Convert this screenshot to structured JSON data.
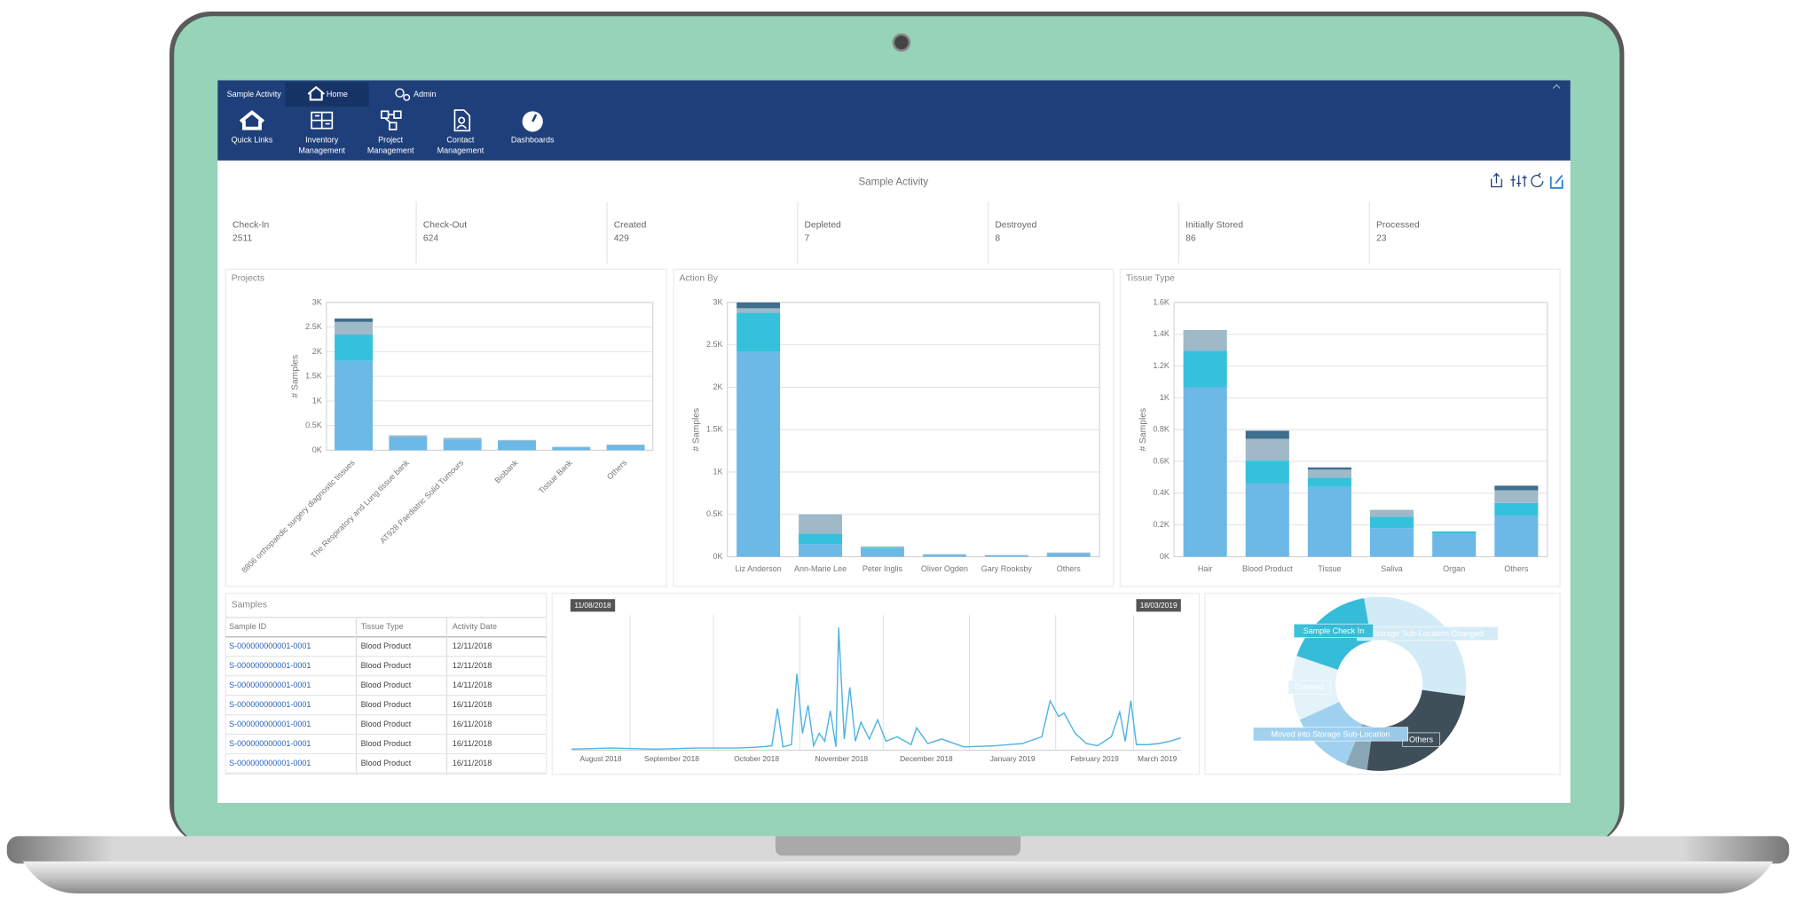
{
  "app": {
    "tabs": [
      "Sample Activity",
      "Home",
      "Admin"
    ],
    "ribbon": [
      [
        "Quick Links"
      ],
      [
        "Inventory",
        "Management"
      ],
      [
        "Project",
        "Management"
      ],
      [
        "Contact",
        "Management"
      ],
      [
        "Dashboards"
      ]
    ]
  },
  "dashboard": {
    "title": "Sample Activity",
    "kpis": [
      {
        "label": "Check-In",
        "value": 2511
      },
      {
        "label": "Check-Out",
        "value": 624
      },
      {
        "label": "Created",
        "value": 429
      },
      {
        "label": "Depleted",
        "value": 7
      },
      {
        "label": "Destroyed",
        "value": 8
      },
      {
        "label": "Initially Stored",
        "value": 86
      },
      {
        "label": "Processed",
        "value": 23
      }
    ]
  },
  "charts": [
    {
      "type": "bar",
      "title": "Projects",
      "y_label": "# Samples",
      "categories": [
        "8806 orthopaedic surgery diagnostic tissues",
        "The Respiratory and Lung tissue bank",
        "AT928 Paediatric Solid Tumours",
        "Biobank",
        "Tissue Bank",
        "Others"
      ],
      "series": [
        {
          "color": "#6cb8e6",
          "values": [
            1814,
            270,
            220,
            190,
            60,
            100
          ]
        },
        {
          "color": "#35c1dc",
          "values": [
            535,
            0,
            0,
            0,
            0,
            0
          ]
        },
        {
          "color": "#9fb9c9",
          "values": [
            256,
            32,
            30,
            19,
            10,
            16
          ]
        },
        {
          "color": "#3f6f8e",
          "values": [
            70,
            0,
            0,
            0,
            0,
            0
          ]
        }
      ],
      "ylim": [
        0,
        3000
      ],
      "yticks": [
        {
          "value": 0,
          "label": "0K"
        },
        {
          "value": 500,
          "label": "0.5K"
        },
        {
          "value": 1000,
          "label": "1K"
        },
        {
          "value": 1500,
          "label": "1.5K"
        },
        {
          "value": 2000,
          "label": "2K"
        },
        {
          "value": 2500,
          "label": "2.5K"
        },
        {
          "value": 3000,
          "label": "3K"
        }
      ],
      "grid": true
    },
    {
      "type": "bar",
      "title": "Action By",
      "y_label": "# Samples",
      "categories": [
        "Liz Anderson",
        "Ann-Marie Lee",
        "Peter Inglis",
        "Oliver Ogden",
        "Gary Rooksby",
        "Others"
      ],
      "series": [
        {
          "color": "#6cb8e6",
          "values": [
            2419,
            149,
            90,
            25,
            15,
            40
          ]
        },
        {
          "color": "#35c1dc",
          "values": [
            459,
            122,
            10,
            0,
            0,
            0
          ]
        },
        {
          "color": "#9fb9c9",
          "values": [
            54,
            229,
            22,
            5,
            5,
            10
          ]
        },
        {
          "color": "#3f6f8e",
          "values": [
            68,
            0,
            0,
            0,
            0,
            0
          ]
        }
      ],
      "ylim": [
        0,
        3000
      ],
      "yticks": [
        {
          "value": 0,
          "label": "0K"
        },
        {
          "value": 500,
          "label": "0.5K"
        },
        {
          "value": 1000,
          "label": "1K"
        },
        {
          "value": 1500,
          "label": "1.5K"
        },
        {
          "value": 2000,
          "label": "2K"
        },
        {
          "value": 2500,
          "label": "2.5K"
        },
        {
          "value": 3000,
          "label": "3K"
        }
      ],
      "grid": true
    },
    {
      "type": "bar",
      "title": "Tissue Type",
      "y_label": "# Samples",
      "categories": [
        "Hair",
        "Blood Product",
        "Tissue",
        "Saliva",
        "Organ",
        "Others"
      ],
      "series": [
        {
          "color": "#6cb8e6",
          "values": [
            1066,
            461,
            440,
            180,
            144,
            259
          ]
        },
        {
          "color": "#35c1dc",
          "values": [
            231,
            144,
            57,
            72,
            15,
            80
          ]
        },
        {
          "color": "#9fb9c9",
          "values": [
            130,
            137,
            51,
            43,
            0,
            79
          ]
        },
        {
          "color": "#3f6f8e",
          "values": [
            0,
            51,
            14,
            0,
            0,
            29
          ]
        }
      ],
      "ylim": [
        0,
        1600
      ],
      "yticks": [
        {
          "value": 0,
          "label": "0K"
        },
        {
          "value": 200,
          "label": "0.2K"
        },
        {
          "value": 400,
          "label": "0.4K"
        },
        {
          "value": 600,
          "label": "0.6K"
        },
        {
          "value": 800,
          "label": "0.8K"
        },
        {
          "value": 1000,
          "label": "1K"
        },
        {
          "value": 1200,
          "label": "1.2K"
        },
        {
          "value": 1400,
          "label": "1.4K"
        },
        {
          "value": 1600,
          "label": "1.6K"
        }
      ],
      "grid": true
    },
    {
      "type": "line",
      "color": "#4fb3e3",
      "x": [
        "11/08/2018",
        "25/08/2018",
        "10/09/2018",
        "25/09/2018",
        "10/10/2018",
        "18/10/2018",
        "22/10/2018",
        "24/10/2018",
        "26/10/2018",
        "29/10/2018",
        "31/10/2018",
        "02/11/2018",
        "04/11/2018",
        "06/11/2018",
        "08/11/2018",
        "10/11/2018",
        "12/11/2018",
        "14/11/2018",
        "15/11/2018",
        "17/11/2018",
        "19/11/2018",
        "21/11/2018",
        "23/11/2018",
        "26/11/2018",
        "29/11/2018",
        "02/12/2018",
        "06/12/2018",
        "11/12/2018",
        "13/12/2018",
        "17/12/2018",
        "22/12/2018",
        "30/12/2018",
        "10/01/2019",
        "20/01/2019",
        "27/01/2019",
        "30/01/2019",
        "02/02/2019",
        "04/02/2019",
        "08/02/2019",
        "12/02/2019",
        "16/02/2019",
        "21/02/2019",
        "24/02/2019",
        "26/02/2019",
        "28/02/2019",
        "02/03/2019",
        "06/03/2019",
        "10/03/2019",
        "14/03/2019",
        "18/03/2019"
      ],
      "values": [
        1,
        2,
        1,
        2,
        2,
        3,
        4,
        37,
        3,
        5,
        68,
        15,
        40,
        4,
        15,
        8,
        35,
        3,
        109,
        10,
        56,
        8,
        25,
        10,
        27,
        8,
        12,
        5,
        20,
        6,
        10,
        3,
        4,
        6,
        12,
        44,
        30,
        33,
        15,
        6,
        4,
        12,
        34,
        8,
        44,
        5,
        5,
        6,
        8,
        11
      ],
      "xlim": [
        "11/08/2018",
        "18/03/2019"
      ],
      "xticks": [
        {
          "value": "01/08/2018",
          "label": "August 2018"
        },
        {
          "value": "01/09/2018",
          "label": "September 2018"
        },
        {
          "value": "01/10/2018",
          "label": "October 2018"
        },
        {
          "value": "01/11/2018",
          "label": "November 2018"
        },
        {
          "value": "01/12/2018",
          "label": "December 2018"
        },
        {
          "value": "01/01/2019",
          "label": "January 2019"
        },
        {
          "value": "01/02/2019",
          "label": "February 2019"
        },
        {
          "value": "01/03/2019",
          "label": "March 2019"
        }
      ],
      "ylim": [
        0,
        120
      ],
      "grid": true
    },
    {
      "type": "donut",
      "categories": [
        "Storage Sub-Location Changed",
        "Others",
        null,
        "Moved into Storage Sub-Location",
        "Created",
        "Sample Check In"
      ],
      "values": [
        30,
        25,
        4,
        12,
        12,
        17
      ],
      "colors": [
        "#d2ebf7",
        "#3f4f5a",
        "#8aa5b6",
        "#9fd0ef",
        "#e4f2f9",
        "#35bcd8"
      ]
    }
  ],
  "table": {
    "title": "Samples",
    "columns": [
      "Sample ID",
      "Tissue Type",
      "Activity Date"
    ],
    "rows": [
      [
        "S-000000000001-0001",
        "Blood Product",
        "12/11/2018"
      ],
      [
        "S-000000000001-0001",
        "Blood Product",
        "12/11/2018"
      ],
      [
        "S-000000000001-0001",
        "Blood Product",
        "14/11/2018"
      ],
      [
        "S-000000000001-0001",
        "Blood Product",
        "16/11/2018"
      ],
      [
        "S-000000000001-0001",
        "Blood Product",
        "16/11/2018"
      ],
      [
        "S-000000000001-0001",
        "Blood Product",
        "16/11/2018"
      ],
      [
        "S-000000000001-0001",
        "Blood Product",
        "16/11/2018"
      ]
    ]
  }
}
